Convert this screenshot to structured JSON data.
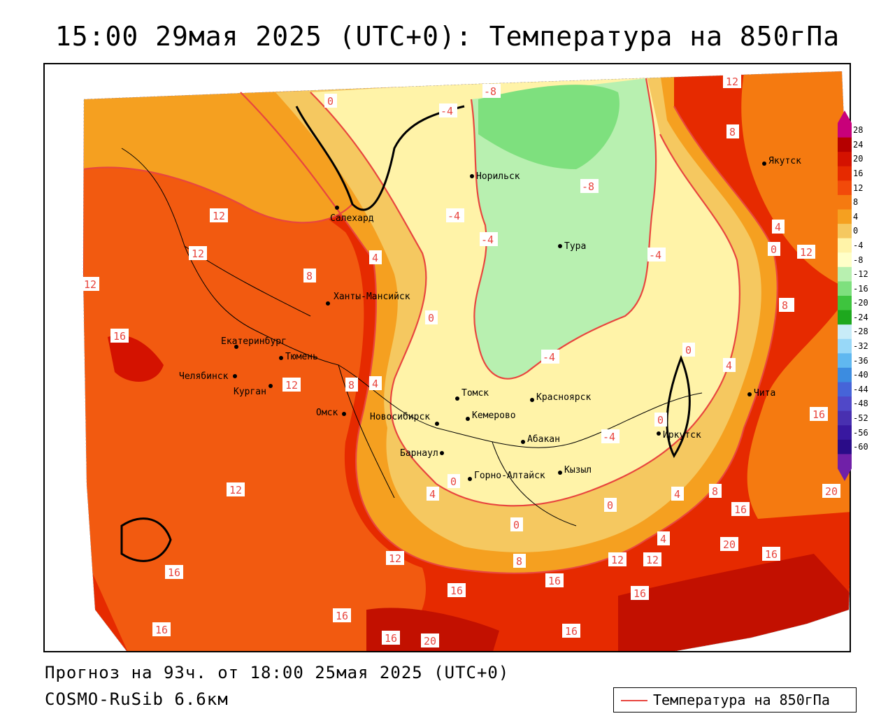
{
  "title": "15:00 29мая 2025 (UTC+0): Температура на 850гПа",
  "footer": {
    "forecast": "Прогноз на 93ч. от 18:00 25мая 2025 (UTC+0)",
    "model": "COSMO-RuSib 6.6км"
  },
  "legend": {
    "label": "Температура на 850гПа",
    "line_color": "#e8463f"
  },
  "colorbar": {
    "ticks": [
      "28",
      "24",
      "20",
      "16",
      "12",
      "8",
      "4",
      "0",
      "-4",
      "-8",
      "-12",
      "-16",
      "-20",
      "-24",
      "-28",
      "-32",
      "-36",
      "-40",
      "-44",
      "-48",
      "-52",
      "-56",
      "-60"
    ],
    "colors": [
      "#c8007a",
      "#b50000",
      "#d41200",
      "#e62a00",
      "#f24a0a",
      "#f57a10",
      "#f5a020",
      "#f5c860",
      "#fff3a8",
      "#ffffc8",
      "#b8f0b0",
      "#7ee07e",
      "#3ec43e",
      "#1ea81e",
      "#c8ecf8",
      "#98d8f8",
      "#60b8f0",
      "#3c8ce0",
      "#4664d8",
      "#5048c8",
      "#4830b0",
      "#3818a0",
      "#2a0c88",
      "#7020a8"
    ]
  },
  "cities": [
    {
      "name": "Норильск"
    },
    {
      "name": "Салехард"
    },
    {
      "name": "Тура"
    },
    {
      "name": "Якутск"
    },
    {
      "name": "Ханты-Мансийск"
    },
    {
      "name": "Екатеринбург"
    },
    {
      "name": "Тюмень"
    },
    {
      "name": "Челябинск"
    },
    {
      "name": "Курган"
    },
    {
      "name": "Омск"
    },
    {
      "name": "Новосибирск"
    },
    {
      "name": "Томск"
    },
    {
      "name": "Кемерово"
    },
    {
      "name": "Красноярск"
    },
    {
      "name": "Абакан"
    },
    {
      "name": "Барнаул"
    },
    {
      "name": "Горно-Алтайск"
    },
    {
      "name": "Кызыл"
    },
    {
      "name": "Иркутск"
    },
    {
      "name": "Чита"
    }
  ],
  "contour_labels": [
    "12",
    "8",
    "0",
    "-8",
    "-4",
    "-4",
    "-4",
    "-4",
    "-8",
    "12",
    "12",
    "12",
    "12",
    "8",
    "4",
    "0",
    "4",
    "0",
    "8",
    "16",
    "4",
    "-4",
    "0",
    "4",
    "8",
    "8",
    "12",
    "16",
    "0",
    "0",
    "4",
    "4",
    "8",
    "12",
    "12",
    "16",
    "16",
    "20",
    "20",
    "16",
    "16",
    "8",
    "12",
    "16",
    "16",
    "16",
    "16",
    "16",
    "20",
    "12",
    "4",
    "0",
    "-4",
    "0",
    "16"
  ]
}
